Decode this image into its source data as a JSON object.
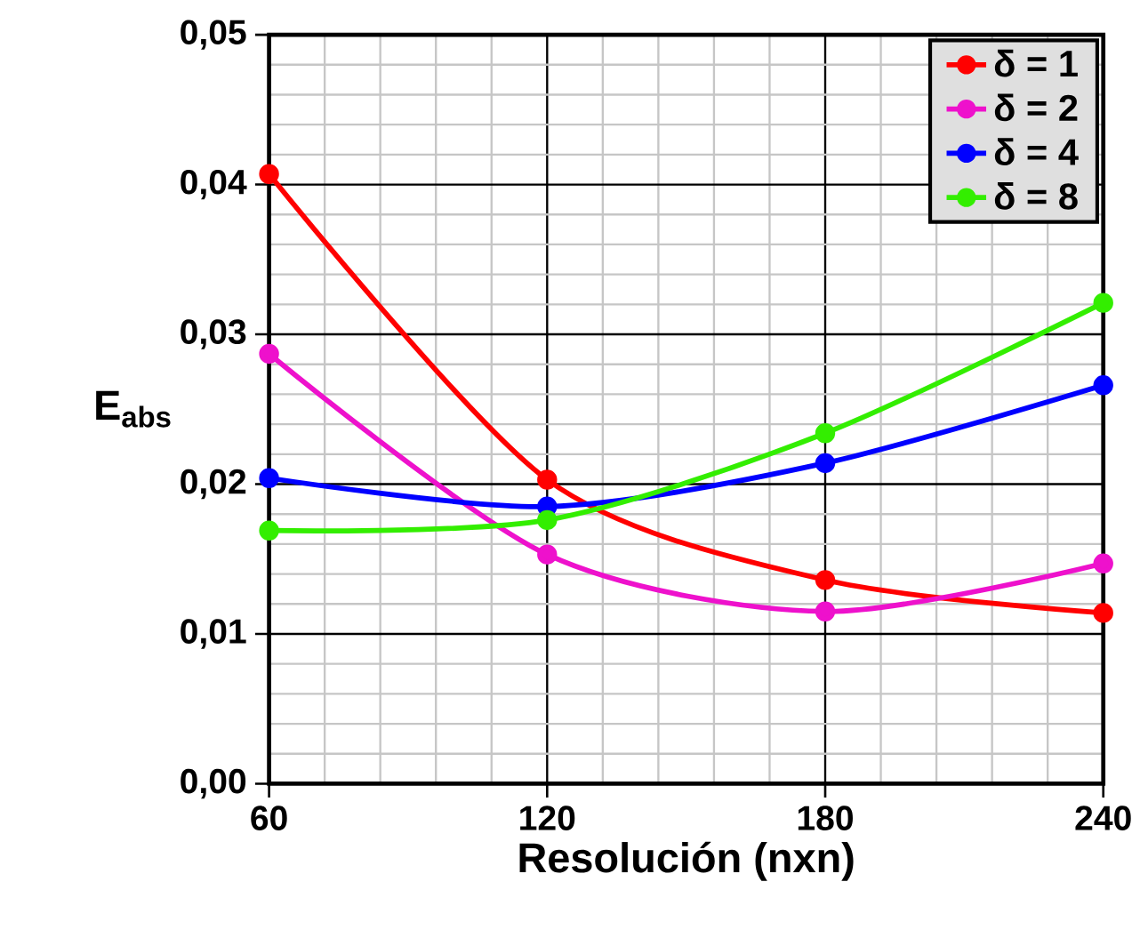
{
  "chart_data": {
    "type": "line",
    "xlabel": "Resolución (nxn)",
    "ylabel": "E$_{abs}$",
    "x": [
      60,
      120,
      180,
      240
    ],
    "series": [
      {
        "name": "δ = 1",
        "color": "#ff0000",
        "values": [
          0.0407,
          0.0203,
          0.0136,
          0.0114
        ]
      },
      {
        "name": "δ = 2",
        "color": "#ee11cc",
        "values": [
          0.0287,
          0.0153,
          0.0115,
          0.0147
        ]
      },
      {
        "name": "δ = 4",
        "color": "#0000ff",
        "values": [
          0.0204,
          0.0185,
          0.0214,
          0.0266
        ]
      },
      {
        "name": "δ = 8",
        "color": "#33ee00",
        "values": [
          0.0169,
          0.0176,
          0.0234,
          0.0321
        ]
      }
    ],
    "xlim": [
      60,
      240
    ],
    "xticks": [
      60,
      120,
      180,
      240
    ],
    "ylim": [
      0,
      0.05
    ],
    "yticks": [
      {
        "value": 0,
        "label": "0,00"
      },
      {
        "value": 0.01,
        "label": "0,01"
      },
      {
        "value": 0.02,
        "label": "0,02"
      },
      {
        "value": 0.03,
        "label": "0,03"
      },
      {
        "value": 0.04,
        "label": "0,04"
      },
      {
        "value": 0.05,
        "label": "0,05"
      }
    ],
    "grid": true,
    "legend": "top right",
    "marker": "circle",
    "line_style": "solid"
  }
}
